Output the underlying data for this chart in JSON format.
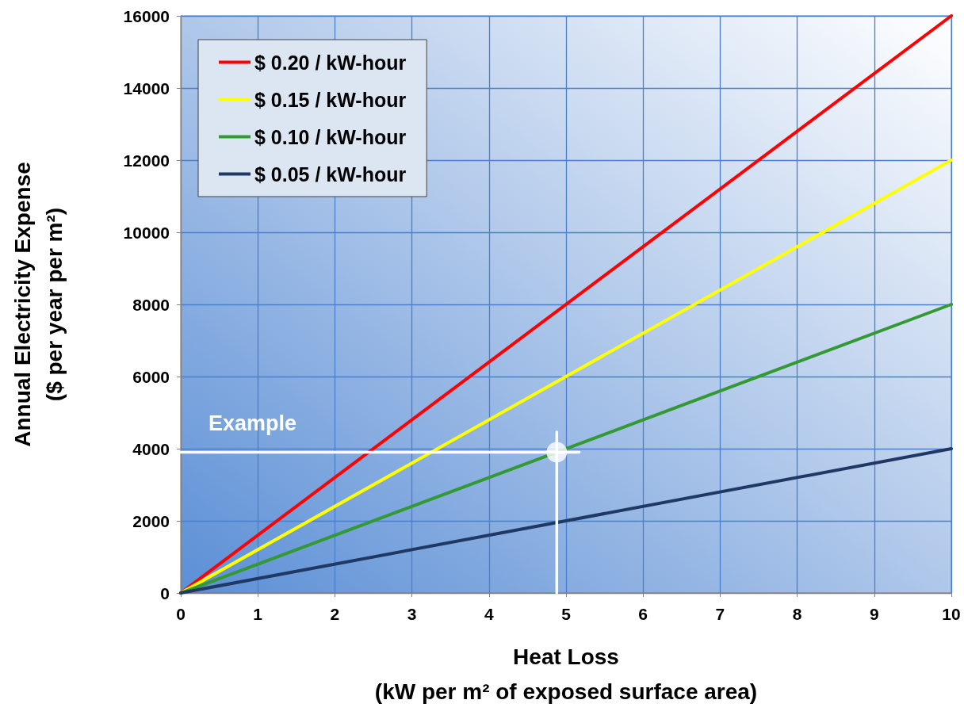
{
  "chart_data": {
    "type": "line",
    "xlabel": "Heat Loss\n(kW per m² of exposed surface area)",
    "ylabel": "Annual Electricity Expense\n($ per year per m²)",
    "x": [
      0,
      10
    ],
    "series": [
      {
        "name": "$ 0.20 / kW-hour",
        "color": "#ff0000",
        "values": [
          0,
          16000
        ]
      },
      {
        "name": "$ 0.15 / kW-hour",
        "color": "#ffff00",
        "values": [
          0,
          12000
        ]
      },
      {
        "name": "$ 0.10 / kW-hour",
        "color": "#339933",
        "values": [
          0,
          8000
        ]
      },
      {
        "name": "$ 0.05 / kW-hour",
        "color": "#1f3864",
        "values": [
          0,
          4000
        ]
      },
      {
        "color": "#ffffff",
        "x": [
          0,
          5.17
        ],
        "values": [
          3900,
          3900
        ]
      },
      {
        "color": "#ffffff",
        "x": [
          4.88,
          4.88
        ],
        "values": [
          0,
          4460
        ]
      },
      {
        "type": "scatter",
        "marker": "circle",
        "color": "#ffffff",
        "x": [
          4.88
        ],
        "values": [
          3900
        ]
      }
    ],
    "annotations": [
      "Example"
    ],
    "xlim": [
      0,
      10
    ],
    "xticks": [
      0,
      1,
      2,
      3,
      4,
      5,
      6,
      7,
      8,
      9,
      10
    ],
    "ylim": [
      0,
      16000
    ],
    "yticks": [
      0,
      2000,
      4000,
      6000,
      8000,
      10000,
      12000,
      14000,
      16000
    ],
    "grid": true,
    "legend": "top left",
    "marker": "none",
    "line_style": "solid"
  }
}
